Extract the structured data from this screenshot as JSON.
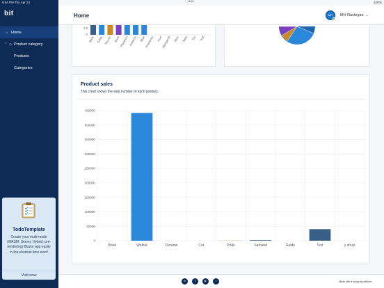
{
  "status": {
    "time": "9:54 PM",
    "date": "Thu Apr 24",
    "battery": "100%",
    "dots": "•••"
  },
  "sidebar": {
    "brand": "bit",
    "items": [
      {
        "label": "Home",
        "icon": "home-icon",
        "glyph": "⌂"
      },
      {
        "label": "Product category",
        "icon": "tag-icon",
        "glyph": "◇",
        "chevron": "⌃"
      },
      {
        "label": "Products"
      },
      {
        "label": "Categories"
      }
    ],
    "promo": {
      "title": "TodoTemplate",
      "text": "Create your multi-mode (WASM, Server, Hybrid, pre-rendering) Blazor app easily in the shortest time ever!",
      "link": "Visit now"
    }
  },
  "header": {
    "title": "Home",
    "user_initials": "MR",
    "user_name": "MH Rastegari",
    "chevron": "⌄"
  },
  "top_left_chart": {
    "ticks": [
      "0.5",
      "0"
    ],
    "labels": [
      "Bank",
      "Sofas",
      "Saucer",
      "Buds",
      "Pluralism",
      "Amazon",
      "Blue",
      "Industries",
      "Acid",
      "Hangar19",
      "Blue",
      "New",
      "Toy",
      "Test"
    ],
    "colors": [
      "#3a5f86",
      "#2b87da",
      "#c98a26",
      "#7b3fbf",
      "#2b87da",
      "#2b87da",
      "#2b87da"
    ]
  },
  "pie_colors": [
    "#2b87da",
    "#3a5f86",
    "#c98a26",
    "#7b3fbf",
    "#1e66b0"
  ],
  "product_sales": {
    "title": "Product sales",
    "subtitle": "This chart shows the sale number of each product."
  },
  "chart_data": {
    "type": "bar",
    "title": "Product sales",
    "categories": [
      "Book",
      "Walnut",
      "Dereme",
      "Car",
      "Pride",
      "Samand",
      "Guide",
      "Test",
      "y zhuyi"
    ],
    "values": [
      0,
      442000,
      0,
      0,
      800,
      2000,
      0,
      40000,
      0
    ],
    "colors": [
      "#2b87da",
      "#2b87da",
      "#2b87da",
      "#2b87da",
      "#e8a060",
      "#3a5f86",
      "#2b87da",
      "#3a5f86",
      "#2b87da"
    ],
    "ylim": [
      0,
      450000
    ],
    "yticks": [
      0,
      50000,
      100000,
      150000,
      200000,
      250000,
      300000,
      350000,
      400000,
      450000
    ],
    "grid": true
  },
  "footer": {
    "social": [
      {
        "name": "linkedin-icon",
        "glyph": "in"
      },
      {
        "name": "twitter-icon",
        "glyph": "t"
      },
      {
        "name": "youtube-icon",
        "glyph": "▶"
      },
      {
        "name": "twitter-icon",
        "glyph": "t"
      }
    ],
    "made_with": "Made with",
    "made_by": "using bit platform",
    "heart": "♥"
  }
}
